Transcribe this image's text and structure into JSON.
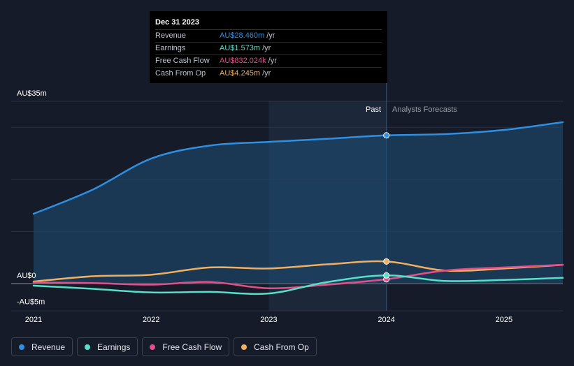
{
  "tooltip": {
    "date": "Dec 31 2023",
    "rows": [
      {
        "label": "Revenue",
        "value": "AU$28.460m",
        "unit": "/yr",
        "color": "#2f8fe0"
      },
      {
        "label": "Earnings",
        "value": "AU$1.573m",
        "unit": "/yr",
        "color": "#56e0c8"
      },
      {
        "label": "Free Cash Flow",
        "value": "AU$832.024k",
        "unit": "/yr",
        "color": "#e0508a"
      },
      {
        "label": "Cash From Op",
        "value": "AU$4.245m",
        "unit": "/yr",
        "color": "#f0b060"
      }
    ]
  },
  "labels": {
    "past": "Past",
    "forecast": "Analysts Forecasts"
  },
  "legend": [
    {
      "label": "Revenue",
      "color": "#2f8fe0"
    },
    {
      "label": "Earnings",
      "color": "#56e0c8"
    },
    {
      "label": "Free Cash Flow",
      "color": "#e0508a"
    },
    {
      "label": "Cash From Op",
      "color": "#f0b060"
    }
  ],
  "chart_data": {
    "type": "line",
    "y_ticks": [
      {
        "value": 35,
        "label": "AU$35m"
      },
      {
        "value": 0,
        "label": "AU$0"
      },
      {
        "value": -5,
        "label": "-AU$5m"
      }
    ],
    "x_ticks": [
      {
        "value": 2021,
        "label": "2021"
      },
      {
        "value": 2022,
        "label": "2022"
      },
      {
        "value": 2023,
        "label": "2023"
      },
      {
        "value": 2024,
        "label": "2024"
      },
      {
        "value": 2025,
        "label": "2025"
      }
    ],
    "ylim": [
      -5,
      35
    ],
    "xlim": [
      2021,
      2025.5
    ],
    "past_end": 2024,
    "highlight_start": 2023,
    "series": [
      {
        "name": "Revenue",
        "color": "#2f8fe0",
        "fill": true,
        "x": [
          2021.0,
          2021.5,
          2022.0,
          2022.5,
          2023.0,
          2023.5,
          2024.0,
          2024.5,
          2025.0,
          2025.5
        ],
        "y": [
          13.4,
          18.0,
          24.0,
          26.5,
          27.2,
          27.8,
          28.46,
          28.7,
          29.5,
          31.0
        ]
      },
      {
        "name": "Earnings",
        "color": "#56e0c8",
        "fill": false,
        "x": [
          2021.0,
          2021.5,
          2022.0,
          2022.5,
          2023.0,
          2023.5,
          2024.0,
          2024.5,
          2025.0,
          2025.5
        ],
        "y": [
          -0.4,
          -1.0,
          -1.7,
          -1.6,
          -1.9,
          0.3,
          1.573,
          0.5,
          0.7,
          1.1
        ]
      },
      {
        "name": "Free Cash Flow",
        "color": "#e0508a",
        "fill": false,
        "x": [
          2021.0,
          2021.5,
          2022.0,
          2022.5,
          2023.0,
          2023.5,
          2024.0,
          2024.5,
          2025.0,
          2025.5
        ],
        "y": [
          0.2,
          0.1,
          -0.2,
          0.3,
          -0.9,
          -0.2,
          0.832,
          2.5,
          3.1,
          3.6
        ]
      },
      {
        "name": "Cash From Op",
        "color": "#f0b060",
        "fill": false,
        "x": [
          2021.0,
          2021.5,
          2022.0,
          2022.5,
          2023.0,
          2023.5,
          2024.0,
          2024.5,
          2025.0,
          2025.5
        ],
        "y": [
          0.4,
          1.4,
          1.7,
          3.1,
          2.9,
          3.7,
          4.245,
          2.5,
          2.9,
          3.6
        ]
      }
    ],
    "grid": true
  }
}
